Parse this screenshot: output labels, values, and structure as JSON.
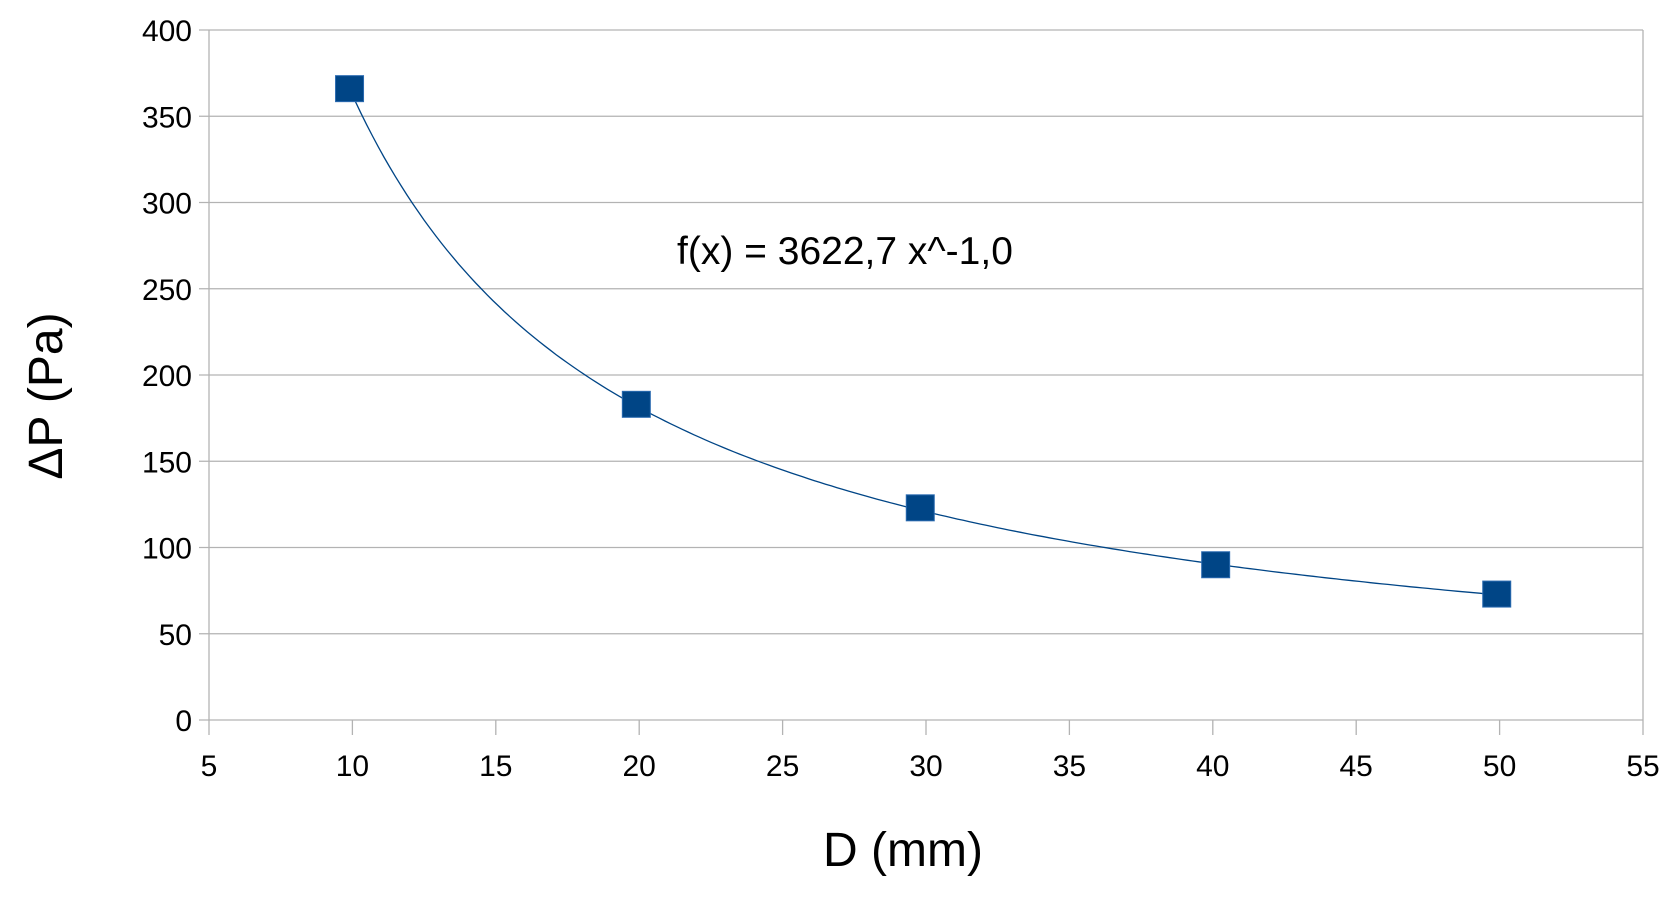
{
  "chart_data": {
    "type": "scatter",
    "title": "",
    "xlabel": "D (mm)",
    "ylabel": "ΔP (Pa)",
    "xlim": [
      5,
      55
    ],
    "ylim": [
      0,
      400
    ],
    "xticks": [
      5,
      10,
      15,
      20,
      25,
      30,
      35,
      40,
      45,
      50,
      55
    ],
    "yticks": [
      0,
      50,
      100,
      150,
      200,
      250,
      300,
      350,
      400
    ],
    "grid": "horizontal",
    "series": [
      {
        "name": "ΔP",
        "marker": "square",
        "color": "#004586",
        "x": [
          9.9,
          19.9,
          29.8,
          40.1,
          49.9
        ],
        "y": [
          366,
          183,
          123,
          90,
          73
        ]
      }
    ],
    "trendline": {
      "type": "power",
      "coefficient": 3622.7,
      "exponent": -1.0,
      "color": "#004586",
      "equation_label": "f(x) = 3622,7 x^-1,0"
    }
  }
}
